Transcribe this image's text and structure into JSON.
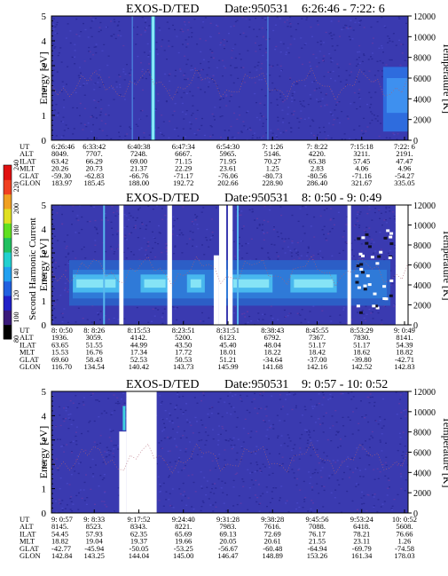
{
  "chart_data": [
    {
      "type": "heatmap",
      "title": "EXOS-D/TED",
      "date_label": "Date:950531",
      "time_range": "6:26:46 - 7:22: 6",
      "ylabel_left": "Energy [eV]",
      "ylabel_right": "Temperature [K]",
      "y_ticks_left": [
        "0",
        "1",
        "2",
        "3",
        "4",
        "5"
      ],
      "y_ticks_right": [
        "0",
        "2000",
        "4000",
        "6000",
        "8000",
        "10000",
        "12000"
      ],
      "ylim_left": [
        0,
        5
      ],
      "ylim_right": [
        0,
        12000
      ],
      "row_labels": [
        "UT",
        "ALT",
        "ILAT",
        "MLT",
        "GLAT",
        "GLON"
      ],
      "columns": [
        [
          "6:26:46",
          "8049.",
          "63.42",
          "20.26",
          "-59.30",
          "183.97"
        ],
        [
          "6:33:42",
          "7707.",
          "66.29",
          "20.73",
          "-62.83",
          "185.45"
        ],
        [
          "6:40:38",
          "7248.",
          "69.00",
          "21.37",
          "-66.76",
          "188.00"
        ],
        [
          "6:47:34",
          "6667.",
          "71.15",
          "22.29",
          "-71.17",
          "192.72"
        ],
        [
          "6:54:30",
          "5965.",
          "71.95",
          "23.61",
          "-76.06",
          "202.66"
        ],
        [
          "7: 1:26",
          "5146.",
          "70.27",
          "1.25",
          "-80.73",
          "228.90"
        ],
        [
          "7: 8:22",
          "4220.",
          "65.38",
          "2.83",
          "-80.56",
          "286.40"
        ],
        [
          "7:15:18",
          "3211.",
          "57.45",
          "4.06",
          "-71.16",
          "321.67"
        ],
        [
          "7:22: 6",
          "2191.",
          "47.47",
          "4.96",
          "-54.27",
          "335.05"
        ]
      ]
    },
    {
      "type": "heatmap",
      "title": "EXOS-D/TED",
      "date_label": "Date:950531",
      "time_range": "8: 0:50 - 9: 0:49",
      "ylabel_left": "Energy [eV]",
      "ylabel_right": "Temperature [K]",
      "y_ticks_left": [
        "0",
        "1",
        "2",
        "3",
        "4",
        "5"
      ],
      "y_ticks_right": [
        "0",
        "2000",
        "4000",
        "6000",
        "8000",
        "10000",
        "12000"
      ],
      "ylim_left": [
        0,
        5
      ],
      "ylim_right": [
        0,
        12000
      ],
      "row_labels": [
        "UT",
        "ALT",
        "ILAT",
        "MLT",
        "GLAT",
        "GLON"
      ],
      "columns": [
        [
          "8: 0:50",
          "1936.",
          "63.65",
          "15.53",
          "69.60",
          "116.70"
        ],
        [
          "8: 8:26",
          "3059.",
          "51.55",
          "16.76",
          "58.43",
          "134.54"
        ],
        [
          "8:15:53",
          "4142.",
          "44.99",
          "17.34",
          "52.53",
          "140.42"
        ],
        [
          "8:23:51",
          "5200.",
          "43.50",
          "17.72",
          "50.53",
          "143.73"
        ],
        [
          "8:31:51",
          "6123.",
          "45.40",
          "18.01",
          "51.21",
          "145.99"
        ],
        [
          "8:38:43",
          "6792.",
          "48.04",
          "18.22",
          "-34.64",
          "141.68"
        ],
        [
          "8:45:55",
          "7367.",
          "51.17",
          "18.42",
          "-37.00",
          "142.16"
        ],
        [
          "8:53:29",
          "7830.",
          "51.17",
          "18.62",
          "-39.80",
          "142.52"
        ],
        [
          "9: 0:49",
          "8141.",
          "54.39",
          "18.82",
          "-42.71",
          "142.83"
        ]
      ],
      "colorbar": {
        "label": "Second Harmonic Current",
        "ticks": [
          "80",
          "100",
          "120",
          "140",
          "160",
          "180",
          "200",
          "220",
          "240"
        ],
        "range": [
          80,
          240
        ]
      }
    },
    {
      "type": "heatmap",
      "title": "EXOS-D/TED",
      "date_label": "Date:950531",
      "time_range": "9: 0:57 - 10: 0:52",
      "ylabel_left": "Energy [eV]",
      "ylabel_right": "Temperature [K]",
      "y_ticks_left": [
        "0",
        "1",
        "2",
        "3",
        "4",
        "5"
      ],
      "y_ticks_right": [
        "0",
        "2000",
        "4000",
        "6000",
        "8000",
        "10000",
        "12000"
      ],
      "ylim_left": [
        0,
        5
      ],
      "ylim_right": [
        0,
        12000
      ],
      "row_labels": [
        "UT",
        "ALT",
        "ILAT",
        "MLT",
        "GLAT",
        "GLON"
      ],
      "columns": [
        [
          "9: 0:57",
          "8145.",
          "54.45",
          "18.82",
          "-42.77",
          "142.84"
        ],
        [
          "9: 8:33",
          "8523.",
          "57.93",
          "19.04",
          "-45.94",
          "143.25"
        ],
        [
          "9:17:52",
          "8343.",
          "62.35",
          "19.37",
          "-50.05",
          "144.04"
        ],
        [
          "9:24:40",
          "8221.",
          "65.69",
          "19.66",
          "-53.25",
          "145.00"
        ],
        [
          "9:31:28",
          "7983.",
          "69.13",
          "20.05",
          "-56.67",
          "146.47"
        ],
        [
          "9:38:28",
          "7616.",
          "72.69",
          "20.61",
          "-60.48",
          "148.89"
        ],
        [
          "9:45:56",
          "7088.",
          "76.17",
          "21.55",
          "-64.94",
          "153.26"
        ],
        [
          "9:53:24",
          "6418.",
          "78.21",
          "23.11",
          "-69.79",
          "161.34"
        ],
        [
          "10: 0:52",
          "5608.",
          "76.66",
          "1.26",
          "-74.58",
          "178.03"
        ]
      ]
    }
  ]
}
